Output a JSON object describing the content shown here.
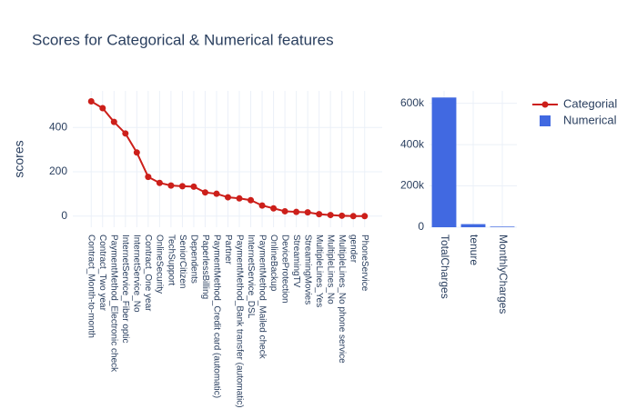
{
  "chart_data": [
    {
      "type": "line",
      "title": "Scores for Categorical & Numerical features",
      "y_label": "scores",
      "categories": [
        "Contract_Month-to-month",
        "Contract_Two year",
        "PaymentMethod_Electronic check",
        "InternetService_Fiber optic",
        "InternetService_No",
        "Contract_One year",
        "OnlineSecurity",
        "TechSupport",
        "SeniorCitizen",
        "Dependents",
        "PaperlessBilling",
        "PaymentMethod_Credit card (automatic)",
        "Partner",
        "PaymentMethod_Bank transfer (automatic)",
        "InternetService_DSL",
        "PaymentMethod_Mailed check",
        "OnlineBackup",
        "DeviceProtection",
        "StreamingTV",
        "StreamingMovies",
        "MultipleLines_Yes",
        "MultipleLines_No",
        "MultipleLines_No phone service",
        "gender",
        "PhoneService"
      ],
      "series": [
        {
          "name": "Categorial",
          "color": "#cc1f1a",
          "values": [
            518,
            487,
            425,
            373,
            287,
            177,
            150,
            138,
            135,
            133,
            107,
            101,
            85,
            80,
            72,
            48,
            35,
            22,
            19,
            17,
            9,
            5,
            2,
            0,
            0
          ]
        }
      ],
      "ylim": [
        -50,
        565
      ],
      "yticks": [
        0,
        200,
        400
      ],
      "grid": true
    },
    {
      "type": "bar",
      "categories": [
        "TotalCharges",
        "tenure",
        "MonthlyCharges"
      ],
      "series": [
        {
          "name": "Numerical",
          "color": "#4169e1",
          "values": [
            628000,
            15000,
            3000
          ]
        }
      ],
      "ylim": [
        0,
        660000
      ],
      "yticks": [
        0,
        {
          "value": 200000,
          "label": "200k"
        },
        {
          "value": 400000,
          "label": "400k"
        },
        {
          "value": 600000,
          "label": "600k"
        }
      ],
      "grid": true
    }
  ]
}
